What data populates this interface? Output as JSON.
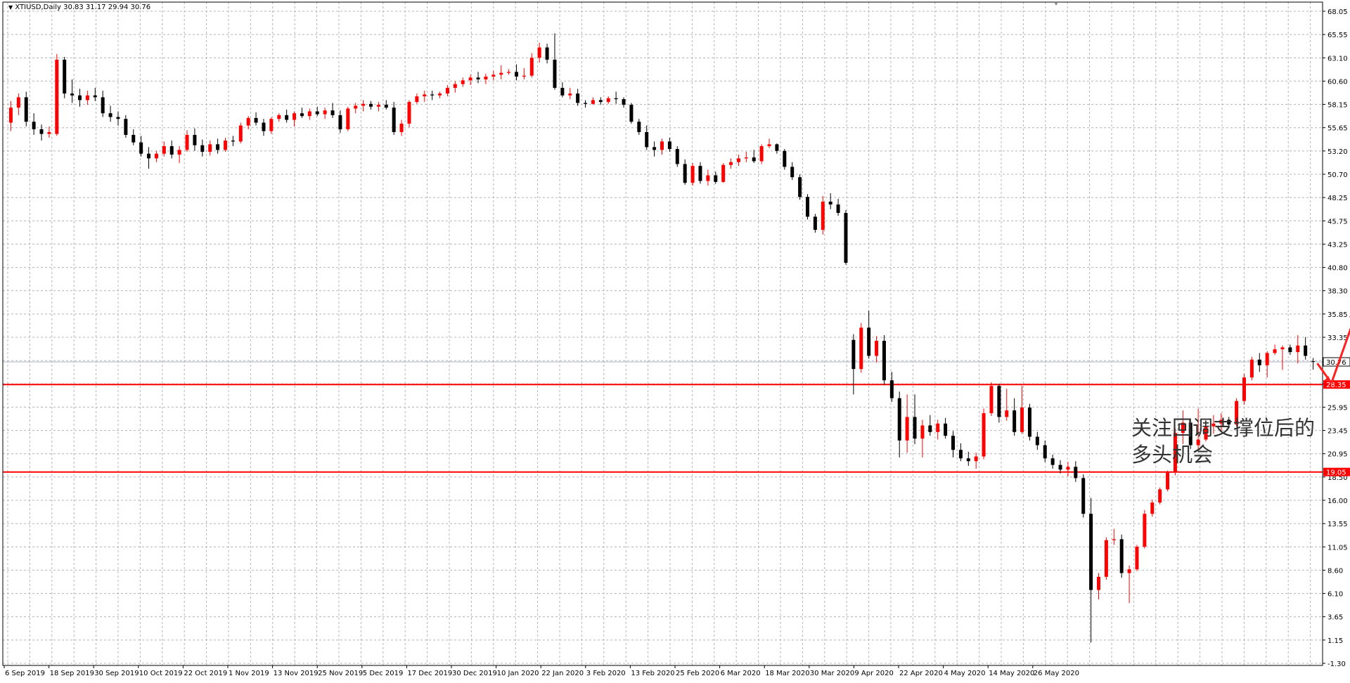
{
  "window": {
    "symbol_info": "XTIUSD,Daily  30.83 31.17 29.94 30.76"
  },
  "annotation": {
    "line1": "关注回调支撑位后的",
    "line2": "多头机会"
  },
  "colors": {
    "bull": "#ff0000",
    "bear": "#000000",
    "grid": "#b4b4b4",
    "support_line": "#ff0000",
    "arrow": "#ff1f1f",
    "current_price_line": "#a9b3c3"
  },
  "chart_data": {
    "type": "candlestick",
    "symbol": "XTIUSD",
    "timeframe": "Daily",
    "ylim": [
      -1.3,
      68.05
    ],
    "y_ticks": [
      "68.05",
      "65.55",
      "63.10",
      "60.60",
      "58.15",
      "55.65",
      "53.20",
      "50.70",
      "48.25",
      "45.75",
      "43.25",
      "40.80",
      "38.30",
      "35.85",
      "33.35",
      "30.90",
      "28.40",
      "25.95",
      "23.45",
      "20.95",
      "18.50",
      "16.00",
      "13.55",
      "11.05",
      "8.60",
      "6.10",
      "3.65",
      "1.15",
      "-1.30"
    ],
    "x_labels": [
      "6 Sep 2019",
      "18 Sep 2019",
      "30 Sep 2019",
      "10 Oct 2019",
      "22 Oct 2019",
      "1 Nov 2019",
      "13 Nov 2019",
      "25 Nov 2019",
      "5 Dec 2019",
      "17 Dec 2019",
      "30 Dec 2019",
      "10 Jan 2020",
      "22 Jan 2020",
      "3 Feb 2020",
      "13 Feb 2020",
      "25 Feb 2020",
      "6 Mar 2020",
      "18 Mar 2020",
      "30 Mar 2020",
      "9 Apr 2020",
      "22 Apr 2020",
      "4 May 2020",
      "14 May 2020",
      "26 May 2020"
    ],
    "current_price": "30.76",
    "horizontal_lines": [
      {
        "label": "28.35",
        "value": 28.35
      },
      {
        "label": "19.05",
        "value": 19.05
      }
    ],
    "candles": [
      [
        56.2,
        58.5,
        55.3,
        57.8
      ],
      [
        57.8,
        59.3,
        57.0,
        58.9
      ],
      [
        58.9,
        59.5,
        55.8,
        56.3
      ],
      [
        56.3,
        57.2,
        54.9,
        55.5
      ],
      [
        55.5,
        56.0,
        54.3,
        55.0
      ],
      [
        55.0,
        55.8,
        54.6,
        55.2
      ],
      [
        55.0,
        63.5,
        54.8,
        62.9
      ],
      [
        62.9,
        63.2,
        58.8,
        59.3
      ],
      [
        59.3,
        60.8,
        58.3,
        59.1
      ],
      [
        59.1,
        59.8,
        57.9,
        58.6
      ],
      [
        58.6,
        59.6,
        58.1,
        59.1
      ],
      [
        59.1,
        59.9,
        58.5,
        58.9
      ],
      [
        58.9,
        59.6,
        56.8,
        57.2
      ],
      [
        57.2,
        58.0,
        56.3,
        56.8
      ],
      [
        56.8,
        57.4,
        55.9,
        56.6
      ],
      [
        56.6,
        57.0,
        54.6,
        54.9
      ],
      [
        54.9,
        55.5,
        53.8,
        54.1
      ],
      [
        54.1,
        54.8,
        52.6,
        52.9
      ],
      [
        52.9,
        53.6,
        51.3,
        52.4
      ],
      [
        52.4,
        53.2,
        52.0,
        52.9
      ],
      [
        52.9,
        54.2,
        52.6,
        53.7
      ],
      [
        53.7,
        54.3,
        52.4,
        52.8
      ],
      [
        52.8,
        53.7,
        51.9,
        53.3
      ],
      [
        53.3,
        55.4,
        53.1,
        54.9
      ],
      [
        54.9,
        55.6,
        53.2,
        53.8
      ],
      [
        53.8,
        54.4,
        52.6,
        53.1
      ],
      [
        53.1,
        54.3,
        52.7,
        53.9
      ],
      [
        53.9,
        54.5,
        52.9,
        53.3
      ],
      [
        53.3,
        54.6,
        53.1,
        54.3
      ],
      [
        54.3,
        54.8,
        53.7,
        54.2
      ],
      [
        54.2,
        56.2,
        54.0,
        55.9
      ],
      [
        55.9,
        56.9,
        55.5,
        56.7
      ],
      [
        56.7,
        57.3,
        55.9,
        56.2
      ],
      [
        56.2,
        56.6,
        54.8,
        55.3
      ],
      [
        55.3,
        56.8,
        55.0,
        56.6
      ],
      [
        56.6,
        57.2,
        56.3,
        57.0
      ],
      [
        57.0,
        57.6,
        56.2,
        56.5
      ],
      [
        56.5,
        57.4,
        55.8,
        57.2
      ],
      [
        57.2,
        57.8,
        56.7,
        56.9
      ],
      [
        56.9,
        57.7,
        56.5,
        57.4
      ],
      [
        57.4,
        57.9,
        56.9,
        57.1
      ],
      [
        57.1,
        57.8,
        56.6,
        57.5
      ],
      [
        57.5,
        58.3,
        56.7,
        57.0
      ],
      [
        57.0,
        57.5,
        55.1,
        55.5
      ],
      [
        55.5,
        57.9,
        55.3,
        57.7
      ],
      [
        57.7,
        58.3,
        57.2,
        58.0
      ],
      [
        58.0,
        58.6,
        57.4,
        58.2
      ],
      [
        58.2,
        58.5,
        57.6,
        57.9
      ],
      [
        57.9,
        58.4,
        57.4,
        58.1
      ],
      [
        58.1,
        58.6,
        57.6,
        57.8
      ],
      [
        57.8,
        58.4,
        54.9,
        55.2
      ],
      [
        55.2,
        56.5,
        54.8,
        56.1
      ],
      [
        56.1,
        58.6,
        55.7,
        58.4
      ],
      [
        58.4,
        59.3,
        58.2,
        59.0
      ],
      [
        59.0,
        59.6,
        58.4,
        59.2
      ],
      [
        59.2,
        59.6,
        58.6,
        59.1
      ],
      [
        59.1,
        59.5,
        58.8,
        59.3
      ],
      [
        59.3,
        60.2,
        59.0,
        59.9
      ],
      [
        59.9,
        60.6,
        59.4,
        60.3
      ],
      [
        60.3,
        61.0,
        60.0,
        60.7
      ],
      [
        60.7,
        61.3,
        60.2,
        61.0
      ],
      [
        61.0,
        61.6,
        60.4,
        60.8
      ],
      [
        60.8,
        61.4,
        60.3,
        61.1
      ],
      [
        61.1,
        61.7,
        60.7,
        61.3
      ],
      [
        61.3,
        62.3,
        60.8,
        61.5
      ],
      [
        61.5,
        61.9,
        61.3,
        61.6
      ],
      [
        61.6,
        62.4,
        60.7,
        61.1
      ],
      [
        61.1,
        62.0,
        60.8,
        61.2
      ],
      [
        61.2,
        63.6,
        61.0,
        63.1
      ],
      [
        63.1,
        64.7,
        62.6,
        64.2
      ],
      [
        64.2,
        64.6,
        62.5,
        62.9
      ],
      [
        62.9,
        65.7,
        59.7,
        59.9
      ],
      [
        59.9,
        60.5,
        58.9,
        59.1
      ],
      [
        59.1,
        59.9,
        58.7,
        59.3
      ],
      [
        59.3,
        59.8,
        58.0,
        58.3
      ],
      [
        58.3,
        58.6,
        57.8,
        58.2
      ],
      [
        58.2,
        58.9,
        58.1,
        58.6
      ],
      [
        58.6,
        58.9,
        58.1,
        58.4
      ],
      [
        58.4,
        59.0,
        58.2,
        58.8
      ],
      [
        58.8,
        59.5,
        58.2,
        58.7
      ],
      [
        58.7,
        58.9,
        57.8,
        58.1
      ],
      [
        58.1,
        58.3,
        56.1,
        56.3
      ],
      [
        56.3,
        56.6,
        54.9,
        55.2
      ],
      [
        55.2,
        55.9,
        53.3,
        53.6
      ],
      [
        53.6,
        54.2,
        52.6,
        53.3
      ],
      [
        53.3,
        54.5,
        52.8,
        54.2
      ],
      [
        54.2,
        54.6,
        53.1,
        53.4
      ],
      [
        53.4,
        53.7,
        51.5,
        51.8
      ],
      [
        51.8,
        52.3,
        49.6,
        49.8
      ],
      [
        49.8,
        51.9,
        49.5,
        51.6
      ],
      [
        51.6,
        52.0,
        49.7,
        50.0
      ],
      [
        50.0,
        51.2,
        49.5,
        50.6
      ],
      [
        50.6,
        51.0,
        49.7,
        49.9
      ],
      [
        49.9,
        51.9,
        49.8,
        51.7
      ],
      [
        51.7,
        52.4,
        51.3,
        52.0
      ],
      [
        52.0,
        52.8,
        51.6,
        52.4
      ],
      [
        52.4,
        53.1,
        52.0,
        52.5
      ],
      [
        52.5,
        53.3,
        51.9,
        52.1
      ],
      [
        52.1,
        53.9,
        51.8,
        53.7
      ],
      [
        53.7,
        54.5,
        53.5,
        53.9
      ],
      [
        53.9,
        54.0,
        52.9,
        53.2
      ],
      [
        53.2,
        53.4,
        51.2,
        51.5
      ],
      [
        51.5,
        52.0,
        50.1,
        50.4
      ],
      [
        50.4,
        50.7,
        48.0,
        48.3
      ],
      [
        48.3,
        48.6,
        45.9,
        46.2
      ],
      [
        46.2,
        46.5,
        44.5,
        44.8
      ],
      [
        44.8,
        48.4,
        44.3,
        47.8
      ],
      [
        47.8,
        48.7,
        47.0,
        47.5
      ],
      [
        47.5,
        48.1,
        46.3,
        46.6
      ],
      [
        46.6,
        46.9,
        41.1,
        41.3
      ],
      [
        33.1,
        33.7,
        27.3,
        30.0
      ],
      [
        30.0,
        34.9,
        29.6,
        34.4
      ],
      [
        34.4,
        36.2,
        31.1,
        31.4
      ],
      [
        31.4,
        33.5,
        30.7,
        33.0
      ],
      [
        33.0,
        33.6,
        28.3,
        28.8
      ],
      [
        28.8,
        29.7,
        26.5,
        26.9
      ],
      [
        26.9,
        27.6,
        20.6,
        22.4
      ],
      [
        22.4,
        27.3,
        21.1,
        24.9
      ],
      [
        24.9,
        27.3,
        22.0,
        22.6
      ],
      [
        22.6,
        24.6,
        20.6,
        24.0
      ],
      [
        24.0,
        25.1,
        22.9,
        23.3
      ],
      [
        23.3,
        24.6,
        22.5,
        24.2
      ],
      [
        24.2,
        24.8,
        22.6,
        22.9
      ],
      [
        22.9,
        23.4,
        20.6,
        21.4
      ],
      [
        21.4,
        22.1,
        20.2,
        20.5
      ],
      [
        20.5,
        21.2,
        19.7,
        20.2
      ],
      [
        20.2,
        21.1,
        19.4,
        20.7
      ],
      [
        20.7,
        25.8,
        20.4,
        25.3
      ],
      [
        25.3,
        28.6,
        25.0,
        28.2
      ],
      [
        28.2,
        28.4,
        24.3,
        24.9
      ],
      [
        24.9,
        27.9,
        24.5,
        25.6
      ],
      [
        25.6,
        26.9,
        22.9,
        23.3
      ],
      [
        23.3,
        28.2,
        23.1,
        25.9
      ],
      [
        25.9,
        26.3,
        22.4,
        22.8
      ],
      [
        22.8,
        23.3,
        21.4,
        21.9
      ],
      [
        21.9,
        22.4,
        20.1,
        20.5
      ],
      [
        20.5,
        20.9,
        19.4,
        19.8
      ],
      [
        19.8,
        20.3,
        18.9,
        19.3
      ],
      [
        19.3,
        20.1,
        18.6,
        19.6
      ],
      [
        19.6,
        20.2,
        18.0,
        18.4
      ],
      [
        18.4,
        18.8,
        14.2,
        14.6
      ],
      [
        14.6,
        16.3,
        0.9,
        6.5
      ],
      [
        6.5,
        8.3,
        5.5,
        7.9
      ],
      [
        7.9,
        12.1,
        7.6,
        11.8
      ],
      [
        11.8,
        13.0,
        11.3,
        11.9
      ],
      [
        11.9,
        12.4,
        7.8,
        8.3
      ],
      [
        8.3,
        9.1,
        5.1,
        8.7
      ],
      [
        8.7,
        11.3,
        8.5,
        11.1
      ],
      [
        11.1,
        15.0,
        10.9,
        14.6
      ],
      [
        14.6,
        16.1,
        14.3,
        15.8
      ],
      [
        15.8,
        17.4,
        15.6,
        17.2
      ],
      [
        17.2,
        19.2,
        17.0,
        19.0
      ],
      [
        19.0,
        23.7,
        18.7,
        23.2
      ],
      [
        23.2,
        25.6,
        22.0,
        24.3
      ],
      [
        24.3,
        24.7,
        21.5,
        21.9
      ],
      [
        21.9,
        25.8,
        21.3,
        22.5
      ],
      [
        22.5,
        24.3,
        22.3,
        23.9
      ],
      [
        23.9,
        25.1,
        23.1,
        24.2
      ],
      [
        24.2,
        25.3,
        23.4,
        24.6
      ],
      [
        24.6,
        24.9,
        23.7,
        24.1
      ],
      [
        24.1,
        26.9,
        23.9,
        26.6
      ],
      [
        26.6,
        29.5,
        26.2,
        29.1
      ],
      [
        29.1,
        31.3,
        28.8,
        31.0
      ],
      [
        31.0,
        31.7,
        29.7,
        30.4
      ],
      [
        30.4,
        31.9,
        29.1,
        31.7
      ],
      [
        31.7,
        32.6,
        31.5,
        32.1
      ],
      [
        32.1,
        32.5,
        29.9,
        32.3
      ],
      [
        32.3,
        32.6,
        31.5,
        31.8
      ],
      [
        31.8,
        33.6,
        30.6,
        32.5
      ],
      [
        32.5,
        33.4,
        31.0,
        31.4
      ],
      [
        30.83,
        31.17,
        29.94,
        30.76
      ]
    ]
  }
}
